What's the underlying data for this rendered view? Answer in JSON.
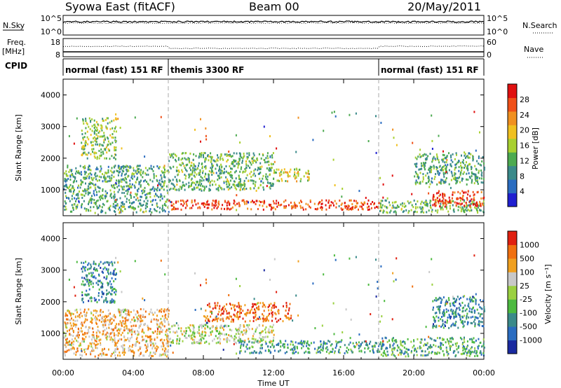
{
  "header": {
    "station": "Syowa East (fitACF)",
    "beam": "Beam 00",
    "date": "20/May/2011"
  },
  "top_panels": {
    "nsky_label": "N.Sky",
    "nsky_ticks": [
      "10^5",
      "10^0"
    ],
    "nsearch_label": "N.Search",
    "nsearch_ticks": [
      "10^5",
      "10^0"
    ],
    "freq_label_1": "Freq.",
    "freq_label_2": "[MHz]",
    "freq_ticks": [
      "18",
      "8"
    ],
    "nave_label": "Nave",
    "nave_ticks": [
      "60",
      "0"
    ],
    "cpid_label": "CPID"
  },
  "cpid_segments": [
    {
      "label": "normal (fast) 151 RF",
      "start": 0,
      "end": 6
    },
    {
      "label": "themis 3300 RF",
      "start": 6,
      "end": 18
    },
    {
      "label": "normal (fast) 151 RF",
      "start": 18,
      "end": 24
    }
  ],
  "chart_data": [
    {
      "type": "heatmap",
      "xlabel": "Time UT",
      "ylabel": "Slant Range [km]",
      "xlim": [
        0,
        24
      ],
      "ylim": [
        180,
        4500
      ],
      "xticks": [
        "00:00",
        "04:00",
        "08:00",
        "12:00",
        "16:00",
        "20:00",
        "00:00"
      ],
      "yticks": [
        1000,
        2000,
        3000,
        4000
      ],
      "colorbar": {
        "label": "Power [dB]",
        "ticks": [
          "4",
          "8",
          "12",
          "16",
          "20",
          "24",
          "28"
        ],
        "range": [
          0,
          30
        ],
        "colors": [
          "#1f1fd0",
          "#2a6cc0",
          "#3a8a8a",
          "#4caa50",
          "#a8d030",
          "#f0c020",
          "#f09020",
          "#f05018",
          "#e01010"
        ]
      },
      "echo_regions": [
        {
          "t0": 0.0,
          "t1": 6.0,
          "r0": 300,
          "r1": 1800,
          "level": 0.35
        },
        {
          "t0": 1.0,
          "t1": 3.0,
          "r0": 2000,
          "r1": 3300,
          "level": 0.45
        },
        {
          "t0": 6.0,
          "t1": 18.0,
          "r0": 400,
          "r1": 700,
          "level": 0.85
        },
        {
          "t0": 6.0,
          "t1": 12.0,
          "r0": 1000,
          "r1": 2200,
          "level": 0.4
        },
        {
          "t0": 12.0,
          "t1": 14.0,
          "r0": 1300,
          "r1": 1700,
          "level": 0.55
        },
        {
          "t0": 18.0,
          "t1": 24.0,
          "r0": 300,
          "r1": 700,
          "level": 0.4
        },
        {
          "t0": 21.0,
          "t1": 24.0,
          "r0": 500,
          "r1": 1000,
          "level": 0.9
        },
        {
          "t0": 20.0,
          "t1": 24.0,
          "r0": 1200,
          "r1": 2200,
          "level": 0.35
        }
      ]
    },
    {
      "type": "heatmap",
      "xlabel": "Time UT",
      "ylabel": "Slant Range [km]",
      "xlim": [
        0,
        24
      ],
      "ylim": [
        180,
        4500
      ],
      "xticks": [
        "00:00",
        "04:00",
        "08:00",
        "12:00",
        "16:00",
        "20:00",
        "00:00"
      ],
      "yticks": [
        1000,
        2000,
        3000,
        4000
      ],
      "colorbar": {
        "label": "Velocity [m s⁻¹]",
        "ticks": [
          "1000",
          "500",
          "100",
          "25",
          "-25",
          "-100",
          "-500",
          "-1000"
        ],
        "range": [
          -1000,
          1000
        ],
        "colors": [
          "#1a2aa0",
          "#2a6cc0",
          "#3a8a8a",
          "#4cba40",
          "#9ad040",
          "#c8c8c8",
          "#f0a020",
          "#f07010",
          "#e02010"
        ]
      },
      "echo_regions": [
        {
          "t0": 0.0,
          "t1": 6.0,
          "r0": 300,
          "r1": 1800,
          "level": 0.7
        },
        {
          "t0": 1.0,
          "t1": 3.0,
          "r0": 2000,
          "r1": 3300,
          "level": 0.25
        },
        {
          "t0": 6.0,
          "t1": 12.0,
          "r0": 700,
          "r1": 1300,
          "level": 0.55
        },
        {
          "t0": 8.0,
          "t1": 13.0,
          "r0": 1400,
          "r1": 2000,
          "level": 0.85
        },
        {
          "t0": 10.0,
          "t1": 18.0,
          "r0": 400,
          "r1": 800,
          "level": 0.3
        },
        {
          "t0": 18.0,
          "t1": 24.0,
          "r0": 300,
          "r1": 900,
          "level": 0.35
        },
        {
          "t0": 21.0,
          "t1": 24.0,
          "r0": 1200,
          "r1": 2200,
          "level": 0.25
        }
      ]
    }
  ]
}
